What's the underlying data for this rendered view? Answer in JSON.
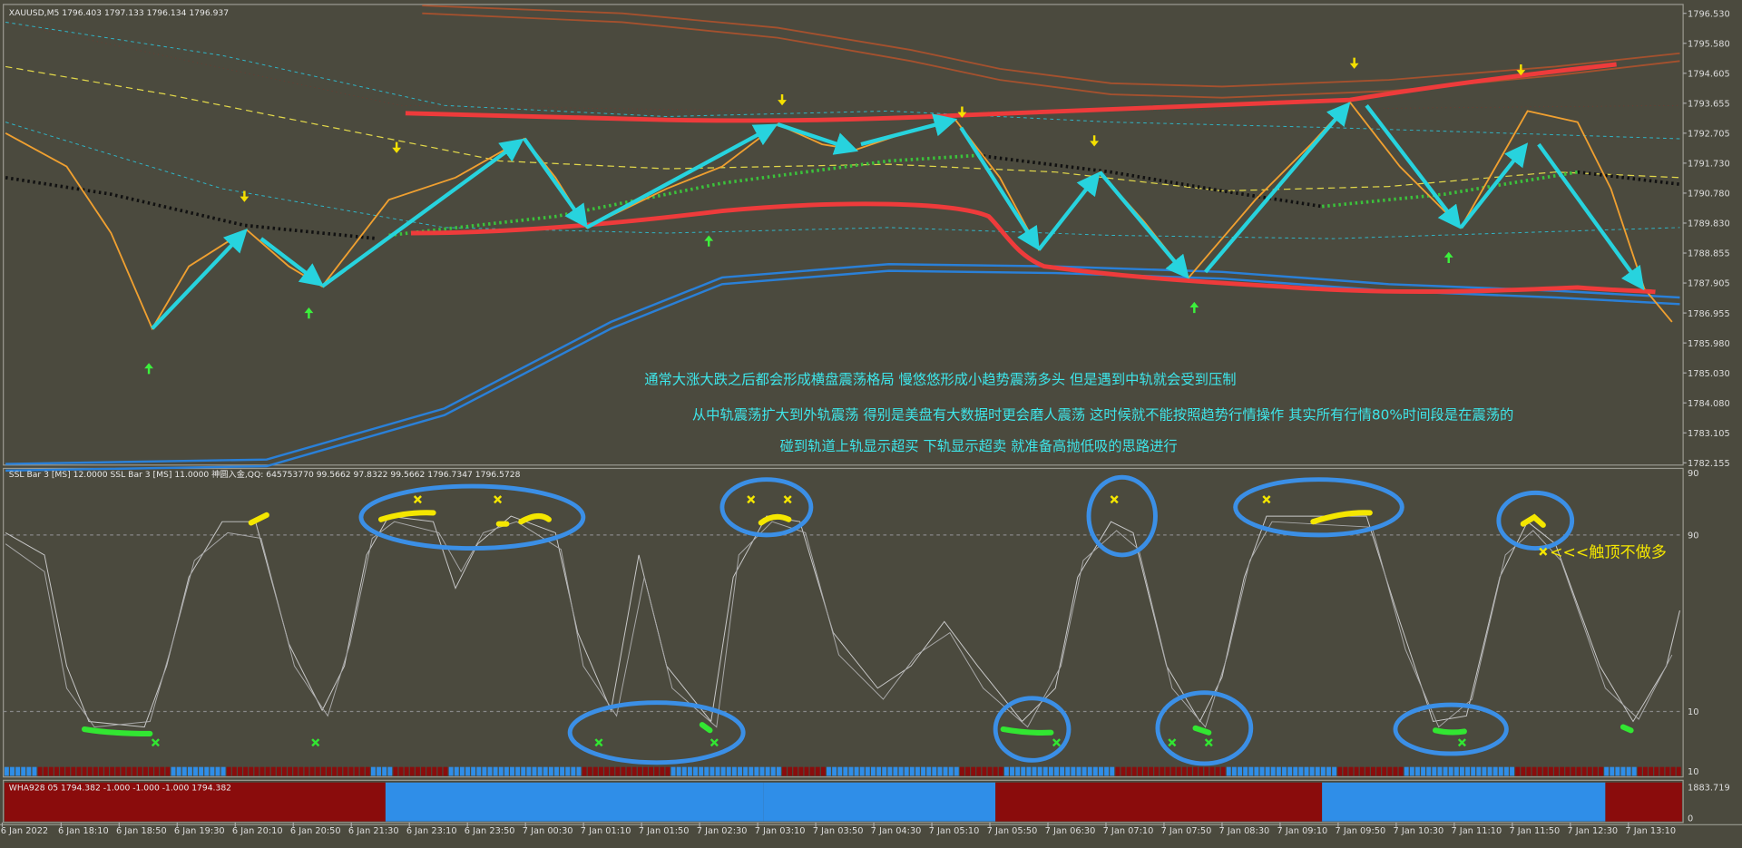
{
  "main_panel": {
    "header": "XAUUSD,M5  1796.403 1797.133 1796.134 1796.937",
    "price_labels": [
      "1796.530",
      "1795.580",
      "1794.605",
      "1793.655",
      "1792.705",
      "1791.730",
      "1790.780",
      "1789.830",
      "1788.855",
      "1787.905",
      "1786.955",
      "1785.980",
      "1785.030",
      "1784.080",
      "1783.105",
      "1782.155"
    ],
    "annotations": [
      "通常大涨大跌之后都会形成横盘震荡格局 慢悠悠形成小趋势震荡多头  但是遇到中轨就会受到压制",
      "从中轨震荡扩大到外轨震荡 得别是美盘有大数据时更会磨人震荡 这时候就不能按照趋势行情操作 其实所有行情80%时间段是在震荡的",
      "碰到轨道上轨显示超买 下轨显示超卖 就准备高抛低吸的思路进行"
    ],
    "side_note": "<<<触顶不做多"
  },
  "indicator_panel": {
    "header": "SSL Bar 3 [MS] 12.0000  SSL Bar 3 [MS] 11.0000  神圆入金,QQ: 645753770 99.5662 97.8322 99.5662 1796.7347 1796.5728",
    "scale_labels": [
      "90",
      "90",
      "10",
      "10"
    ]
  },
  "bottom_panel": {
    "header": "WHA928 05 1794.382 -1.000 -1.000 -1.000 1794.382",
    "scale_labels": [
      "1883.719",
      "0"
    ]
  },
  "time_axis": {
    "labels": [
      "6 Jan 2022",
      "6 Jan 18:10",
      "6 Jan 18:50",
      "6 Jan 19:30",
      "6 Jan 20:10",
      "6 Jan 20:50",
      "6 Jan 21:30",
      "6 Jan 23:10",
      "6 Jan 23:50",
      "7 Jan 00:30",
      "7 Jan 01:10",
      "7 Jan 01:50",
      "7 Jan 02:30",
      "7 Jan 03:10",
      "7 Jan 03:50",
      "7 Jan 04:30",
      "7 Jan 05:10",
      "7 Jan 05:50",
      "7 Jan 06:30",
      "7 Jan 07:10",
      "7 Jan 07:50",
      "7 Jan 08:30",
      "7 Jan 09:10",
      "7 Jan 09:50",
      "7 Jan 10:30",
      "7 Jan 11:10",
      "7 Jan 11:50",
      "7 Jan 12:30",
      "7 Jan 13:10"
    ]
  }
}
